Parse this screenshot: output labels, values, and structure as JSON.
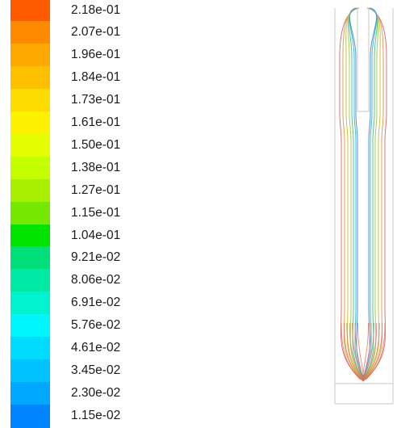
{
  "legend": {
    "labels": [
      "2.18e-01",
      "2.07e-01",
      "1.96e-01",
      "1.84e-01",
      "1.73e-01",
      "1.61e-01",
      "1.50e-01",
      "1.38e-01",
      "1.27e-01",
      "1.15e-01",
      "1.04e-01",
      "9.21e-02",
      "8.06e-02",
      "6.91e-02",
      "5.76e-02",
      "4.61e-02",
      "3.45e-02",
      "2.30e-02",
      "1.15e-02"
    ],
    "colors": [
      "#ff5a00",
      "#ff8a00",
      "#ffa800",
      "#ffc000",
      "#ffdc00",
      "#fff200",
      "#e6ff00",
      "#c4ff00",
      "#a8f000",
      "#74e800",
      "#00e400",
      "#00e07a",
      "#00eaa6",
      "#00f2d0",
      "#00f6ff",
      "#00dcff",
      "#00c2ff",
      "#00a8ff",
      "#0084ff"
    ]
  },
  "streamlines": {
    "colors": [
      "#e07070",
      "#e0a050",
      "#d0c040",
      "#a0d050",
      "#50c890",
      "#40c0c8",
      "#5090e0",
      "#7070e0"
    ]
  }
}
